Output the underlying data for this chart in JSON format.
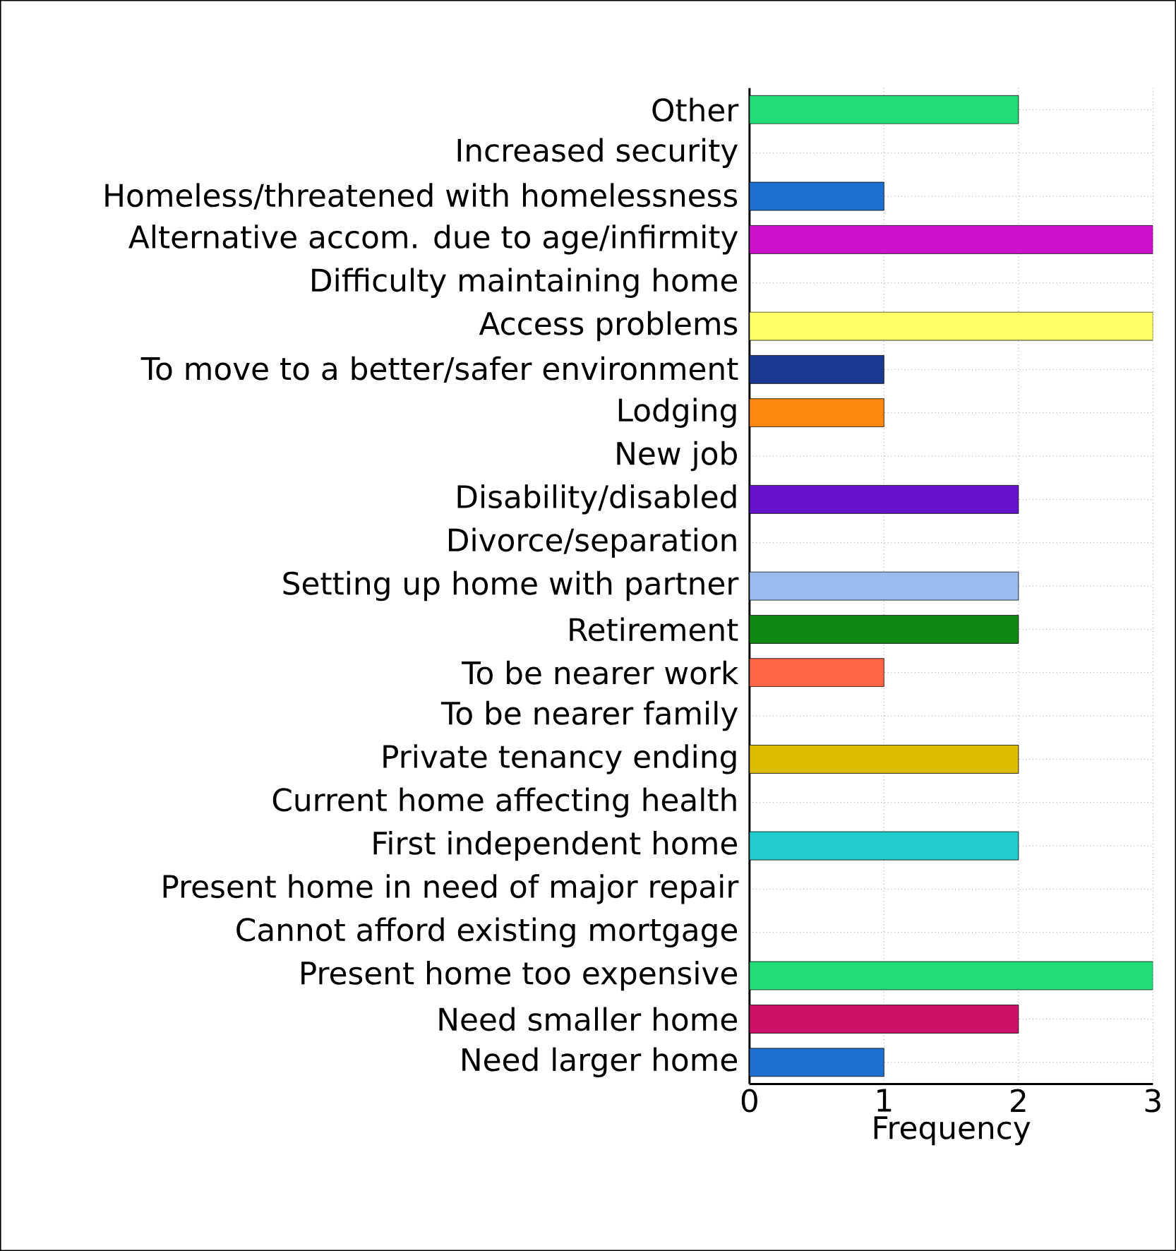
{
  "chart_data": {
    "type": "bar",
    "orientation": "horizontal",
    "xlabel": "Frequency",
    "categories": [
      "Other",
      "Increased security",
      "Homeless/threatened with homelessness",
      "Alternative accom. due to age/infirmity",
      "Difficulty maintaining home",
      "Access problems",
      "To move to a better/safer environment",
      "Lodging",
      "New job",
      "Disability/disabled",
      "Divorce/separation",
      "Setting up home with partner",
      "Retirement",
      "To be nearer work",
      "To be nearer family",
      "Private tenancy ending",
      "Current home affecting health",
      "First independent home",
      "Present home in need of major repair",
      "Cannot afford existing mortgage",
      "Present home too expensive",
      "Need smaller home",
      "Need larger home"
    ],
    "values": [
      2,
      0,
      1,
      3,
      0,
      3,
      1,
      1,
      0,
      2,
      0,
      2,
      2,
      1,
      0,
      2,
      0,
      2,
      0,
      0,
      3,
      2,
      1
    ],
    "colors": [
      "#22dd77",
      "#777777",
      "#1e6fd0",
      "#cc11cc",
      "#777777",
      "#ffff66",
      "#1a3a8f",
      "#ff8811",
      "#777777",
      "#6611cc",
      "#777777",
      "#99bbee",
      "#118811",
      "#ff6644",
      "#777777",
      "#ddbb00",
      "#777777",
      "#22cccc",
      "#777777",
      "#777777",
      "#22dd77",
      "#cc1166",
      "#1e6fd0"
    ],
    "xlim": [
      0,
      3
    ],
    "xticks": [
      0,
      1,
      2,
      3
    ],
    "grid": true
  }
}
